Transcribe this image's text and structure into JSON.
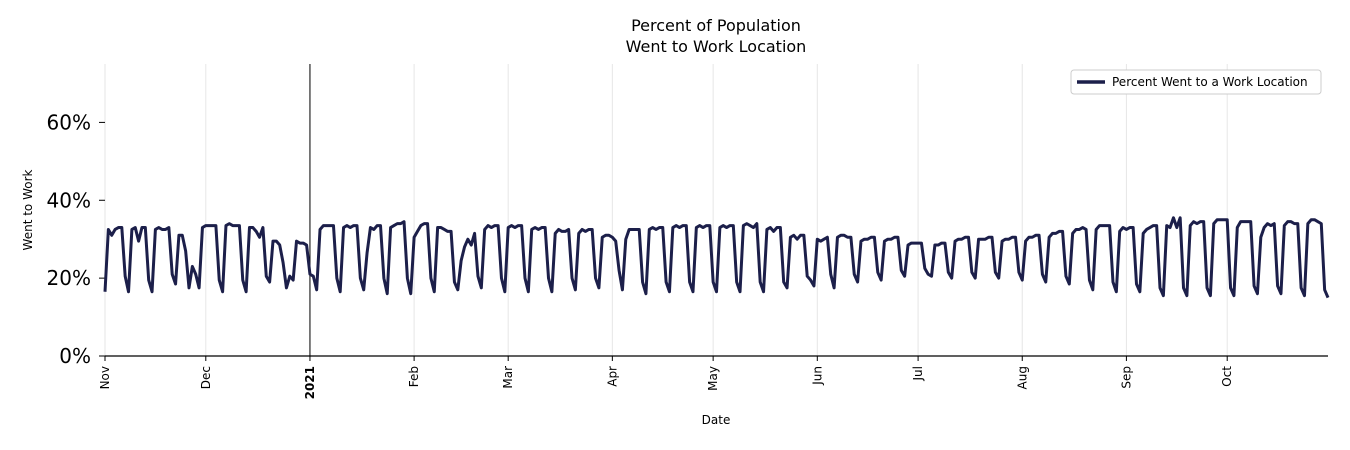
{
  "chart_data": {
    "type": "line",
    "title_lines": [
      "Percent of Population",
      "Went to Work Location"
    ],
    "xlabel": "Date",
    "ylabel": "Went to Work",
    "ylim": [
      0,
      75
    ],
    "yticks": [
      0,
      20,
      40,
      60
    ],
    "ytick_labels": [
      "0%",
      "20%",
      "40%",
      "60%"
    ],
    "x_start_date": "2020-11-01",
    "x_end_date": "2021-10-30",
    "x_ticks": [
      {
        "label": "Nov",
        "day": 0,
        "bold": false
      },
      {
        "label": "Dec",
        "day": 30,
        "bold": false
      },
      {
        "label": "2021",
        "day": 61,
        "bold": true
      },
      {
        "label": "Feb",
        "day": 92,
        "bold": false
      },
      {
        "label": "Mar",
        "day": 120,
        "bold": false
      },
      {
        "label": "Apr",
        "day": 151,
        "bold": false
      },
      {
        "label": "May",
        "day": 181,
        "bold": false
      },
      {
        "label": "Jun",
        "day": 212,
        "bold": false
      },
      {
        "label": "Jul",
        "day": 242,
        "bold": false
      },
      {
        "label": "Aug",
        "day": 273,
        "bold": false
      },
      {
        "label": "Sep",
        "day": 304,
        "bold": false
      },
      {
        "label": "Oct",
        "day": 334,
        "bold": false
      }
    ],
    "year_divider_day": 61,
    "grid_x": true,
    "grid_y": false,
    "legend_position": "top-right",
    "color": "#1c1f4a",
    "series": [
      {
        "name": "Percent Went to a Work Location",
        "values": [
          16.5,
          32.5,
          31.0,
          32.5,
          33.0,
          33.0,
          20.5,
          16.5,
          32.5,
          33.0,
          29.5,
          33.0,
          33.0,
          19.5,
          16.5,
          32.5,
          33.0,
          32.5,
          32.5,
          33.0,
          21.0,
          18.5,
          31.0,
          31.0,
          27.0,
          17.5,
          23.0,
          21.0,
          17.5,
          33.0,
          33.5,
          33.5,
          33.5,
          33.5,
          19.5,
          16.5,
          33.5,
          34.0,
          33.5,
          33.5,
          33.5,
          19.5,
          16.5,
          33.0,
          33.0,
          32.0,
          30.5,
          33.0,
          20.5,
          19.0,
          29.5,
          29.5,
          28.5,
          24.0,
          17.5,
          20.5,
          19.5,
          29.5,
          29.0,
          29.0,
          28.5,
          21.0,
          20.5,
          17.0,
          32.5,
          33.5,
          33.5,
          33.5,
          33.5,
          20.0,
          16.5,
          33.0,
          33.5,
          33.0,
          33.5,
          33.5,
          20.0,
          17.0,
          26.5,
          33.0,
          32.5,
          33.5,
          33.5,
          20.0,
          16.0,
          33.0,
          33.5,
          34.0,
          34.0,
          34.5,
          20.0,
          16.0,
          30.5,
          32.0,
          33.5,
          34.0,
          34.0,
          20.0,
          16.5,
          33.0,
          33.0,
          32.5,
          32.0,
          32.0,
          19.0,
          17.0,
          24.5,
          28.0,
          30.0,
          28.5,
          31.5,
          20.5,
          17.5,
          32.5,
          33.5,
          33.0,
          33.5,
          33.5,
          20.0,
          16.5,
          33.0,
          33.5,
          33.0,
          33.5,
          33.5,
          20.0,
          16.5,
          32.5,
          33.0,
          32.5,
          33.0,
          33.0,
          20.0,
          16.5,
          31.5,
          32.5,
          32.0,
          32.0,
          32.5,
          20.0,
          17.0,
          31.5,
          32.5,
          32.0,
          32.5,
          32.5,
          20.0,
          17.5,
          30.5,
          31.0,
          31.0,
          30.5,
          29.5,
          22.0,
          17.0,
          30.0,
          32.5,
          32.5,
          32.5,
          32.5,
          19.0,
          16.0,
          32.5,
          33.0,
          32.5,
          33.0,
          33.0,
          19.0,
          16.5,
          33.0,
          33.5,
          33.0,
          33.5,
          33.5,
          19.0,
          16.5,
          33.0,
          33.5,
          33.0,
          33.5,
          33.5,
          19.0,
          16.5,
          33.0,
          33.5,
          33.0,
          33.5,
          33.5,
          19.0,
          16.5,
          33.5,
          34.0,
          33.5,
          33.0,
          34.0,
          19.0,
          16.5,
          32.5,
          33.0,
          32.0,
          33.0,
          33.0,
          19.0,
          17.5,
          30.5,
          31.0,
          30.0,
          31.0,
          31.0,
          20.5,
          19.5,
          18.0,
          30.0,
          29.5,
          30.0,
          30.5,
          21.0,
          17.5,
          30.5,
          31.0,
          31.0,
          30.5,
          30.5,
          21.0,
          19.0,
          29.5,
          30.0,
          30.0,
          30.5,
          30.5,
          21.5,
          19.5,
          29.5,
          30.0,
          30.0,
          30.5,
          30.5,
          22.0,
          20.5,
          28.5,
          29.0,
          29.0,
          29.0,
          29.0,
          22.5,
          21.0,
          20.5,
          28.5,
          28.5,
          29.0,
          29.0,
          21.5,
          20.0,
          29.5,
          30.0,
          30.0,
          30.5,
          30.5,
          21.5,
          20.0,
          30.0,
          30.0,
          30.0,
          30.5,
          30.5,
          21.5,
          20.0,
          29.5,
          30.0,
          30.0,
          30.5,
          30.5,
          21.5,
          19.5,
          29.5,
          30.5,
          30.5,
          31.0,
          31.0,
          21.0,
          19.0,
          30.5,
          31.5,
          31.5,
          32.0,
          32.0,
          20.5,
          18.5,
          31.5,
          32.5,
          32.5,
          33.0,
          32.5,
          19.5,
          17.0,
          32.5,
          33.5,
          33.5,
          33.5,
          33.5,
          19.0,
          16.5,
          32.0,
          33.0,
          32.5,
          33.0,
          33.0,
          18.5,
          16.5,
          31.5,
          32.5,
          33.0,
          33.5,
          33.5,
          17.5,
          15.5,
          33.5,
          33.0,
          35.5,
          33.0,
          35.5,
          17.5,
          15.5,
          33.5,
          34.5,
          34.0,
          34.5,
          34.5,
          17.5,
          15.5,
          34.0,
          35.0,
          35.0,
          35.0,
          35.0,
          17.5,
          15.5,
          33.0,
          34.5,
          34.5,
          34.5,
          34.5,
          18.0,
          16.0,
          30.5,
          33.0,
          34.0,
          33.5,
          34.0,
          18.0,
          16.0,
          33.5,
          34.5,
          34.5,
          34.0,
          34.0,
          17.5,
          15.5,
          34.0,
          35.0,
          35.0,
          34.5,
          34.0,
          17.0,
          15.0
        ]
      }
    ]
  }
}
